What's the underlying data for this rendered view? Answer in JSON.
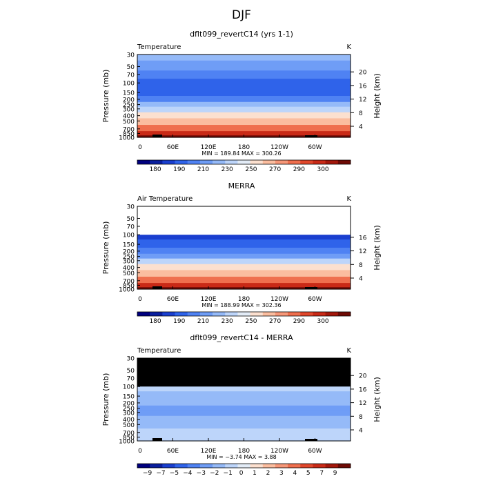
{
  "figure": {
    "title": "DJF"
  },
  "chart_data": [
    {
      "type": "heatmap",
      "title": "dflt099_revertC14 (yrs 1-1)",
      "variable": "Temperature",
      "units": "K",
      "ylabel": "Pressure (mb)",
      "ylabel_right": "Height (km)",
      "x_ticks": [
        "0",
        "60E",
        "120E",
        "180",
        "120W",
        "60W"
      ],
      "y_ticks": [
        "30",
        "50",
        "70",
        "100",
        "150",
        "200",
        "250",
        "300",
        "400",
        "500",
        "700",
        "850",
        "1000"
      ],
      "y_range_mb": [
        1000,
        30
      ],
      "right_ticks": [
        "20",
        "16",
        "12",
        "8",
        "4"
      ],
      "min_max": "MIN = 189.84   MAX = 300.26",
      "colorbar_labels": [
        "180",
        "190",
        "210",
        "230",
        "250",
        "270",
        "290",
        "300"
      ],
      "colors": [
        "#00007f",
        "#0a1f9e",
        "#1a3fcf",
        "#2f63ea",
        "#4f82f3",
        "#6f9df6",
        "#95baf8",
        "#bdd5fa",
        "#e3ecf7",
        "#fce0cf",
        "#fbbd9f",
        "#f69778",
        "#ef6f4e",
        "#e0472b",
        "#c92a17",
        "#a3170b",
        "#6e0a05"
      ],
      "profile": [
        [
          30,
          6
        ],
        [
          50,
          5
        ],
        [
          70,
          4
        ],
        [
          100,
          3
        ],
        [
          150,
          3
        ],
        [
          200,
          4
        ],
        [
          250,
          6
        ],
        [
          300,
          7
        ],
        [
          400,
          9
        ],
        [
          500,
          10
        ],
        [
          700,
          12
        ],
        [
          850,
          14
        ],
        [
          1000,
          16
        ]
      ]
    },
    {
      "type": "heatmap",
      "title": "MERRA",
      "variable": "Air Temperature",
      "units": "K",
      "ylabel": "Pressure (mb)",
      "ylabel_right": "Height (km)",
      "x_ticks": [
        "0",
        "60E",
        "120E",
        "180",
        "120W",
        "60W"
      ],
      "y_ticks": [
        "30",
        "50",
        "70",
        "100",
        "150",
        "200",
        "250",
        "300",
        "400",
        "500",
        "700",
        "850",
        "1000"
      ],
      "y_range_mb": [
        1000,
        30
      ],
      "data_top_mb": 100,
      "right_ticks": [
        "16",
        "12",
        "8",
        "4"
      ],
      "min_max": "MIN = 188.99   MAX = 302.36",
      "colorbar_labels": [
        "180",
        "190",
        "210",
        "230",
        "250",
        "270",
        "290",
        "300"
      ],
      "colors": [
        "#00007f",
        "#0a1f9e",
        "#1a3fcf",
        "#2f63ea",
        "#4f82f3",
        "#6f9df6",
        "#95baf8",
        "#bdd5fa",
        "#e3ecf7",
        "#fce0cf",
        "#fbbd9f",
        "#f69778",
        "#ef6f4e",
        "#e0472b",
        "#c92a17",
        "#a3170b",
        "#6e0a05"
      ],
      "profile": [
        [
          100,
          2
        ],
        [
          150,
          3
        ],
        [
          200,
          4
        ],
        [
          250,
          5
        ],
        [
          300,
          7
        ],
        [
          400,
          9
        ],
        [
          500,
          10
        ],
        [
          700,
          12
        ],
        [
          850,
          14
        ],
        [
          1000,
          16
        ]
      ]
    },
    {
      "type": "heatmap",
      "title": "dflt099_revertC14 - MERRA",
      "variable": "Temperature",
      "units": "K",
      "ylabel": "Pressure (mb)",
      "ylabel_right": "Height (km)",
      "x_ticks": [
        "0",
        "60E",
        "120E",
        "180",
        "120W",
        "60W"
      ],
      "y_ticks": [
        "30",
        "50",
        "70",
        "100",
        "150",
        "200",
        "250",
        "300",
        "400",
        "500",
        "700",
        "850",
        "1000"
      ],
      "y_range_mb": [
        1000,
        30
      ],
      "masked_above_mb": 100,
      "right_ticks": [
        "20",
        "16",
        "12",
        "8",
        "4"
      ],
      "min_max": "MIN =  −3.74   MAX =   3.88",
      "colorbar_labels": [
        "−9",
        "−7",
        "−5",
        "−4",
        "−3",
        "−2",
        "−1",
        "0",
        "1",
        "2",
        "3",
        "4",
        "5",
        "7",
        "9"
      ],
      "colors": [
        "#00007f",
        "#0a1f9e",
        "#1a3fcf",
        "#2f63ea",
        "#4f82f3",
        "#6f9df6",
        "#95baf8",
        "#bdd5fa",
        "#e3ecf7",
        "#fce0cf",
        "#fbbd9f",
        "#f69778",
        "#ef6f4e",
        "#e0472b",
        "#c92a17",
        "#a3170b",
        "#6e0a05"
      ],
      "profile": [
        [
          100,
          7
        ],
        [
          150,
          6
        ],
        [
          200,
          6
        ],
        [
          250,
          5
        ],
        [
          300,
          5
        ],
        [
          400,
          6
        ],
        [
          500,
          6
        ],
        [
          700,
          7
        ],
        [
          850,
          7
        ],
        [
          1000,
          7
        ]
      ]
    }
  ]
}
